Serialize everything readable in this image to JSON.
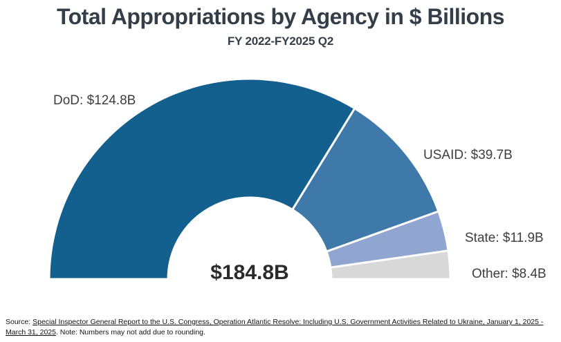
{
  "chart_data": {
    "type": "pie",
    "variant": "half-donut",
    "title": "Total Appropriations by Agency in $ Billions",
    "subtitle": "FY 2022-FY2025 Q2",
    "unit": "$ Billions",
    "total_value": 184.8,
    "total_label": "$184.8B",
    "start_angle_deg": 180,
    "end_angle_deg": 0,
    "segments": [
      {
        "label": "DoD",
        "value": 124.8,
        "display": "DoD: $124.8B",
        "color": "#135f8e"
      },
      {
        "label": "USAID",
        "value": 39.7,
        "display": "USAID: $39.7B",
        "color": "#3e79a9"
      },
      {
        "label": "State",
        "value": 11.9,
        "display": "State: $11.9B",
        "color": "#90a6d1"
      },
      {
        "label": "Other",
        "value": 8.4,
        "display": "Other: $8.4B",
        "color": "#d8d8d8"
      }
    ],
    "legend_position": "labels-around-arc",
    "grid": false
  },
  "footer": {
    "prefix": "Source: ",
    "link_text": "Special Inspector General Report to the U.S. Congress, Operation Atlantic Resolve: Including U.S. Government Activities Related to Ukraine, January 1, 2025 - March 31, 2025",
    "suffix": ". Note: Numbers may not add due to rounding."
  },
  "colors": {
    "title": "#333e48",
    "segment_label": "#3d3d3d",
    "center_total": "#2b2b2b",
    "segment_gap_stroke": "#ffffff"
  }
}
